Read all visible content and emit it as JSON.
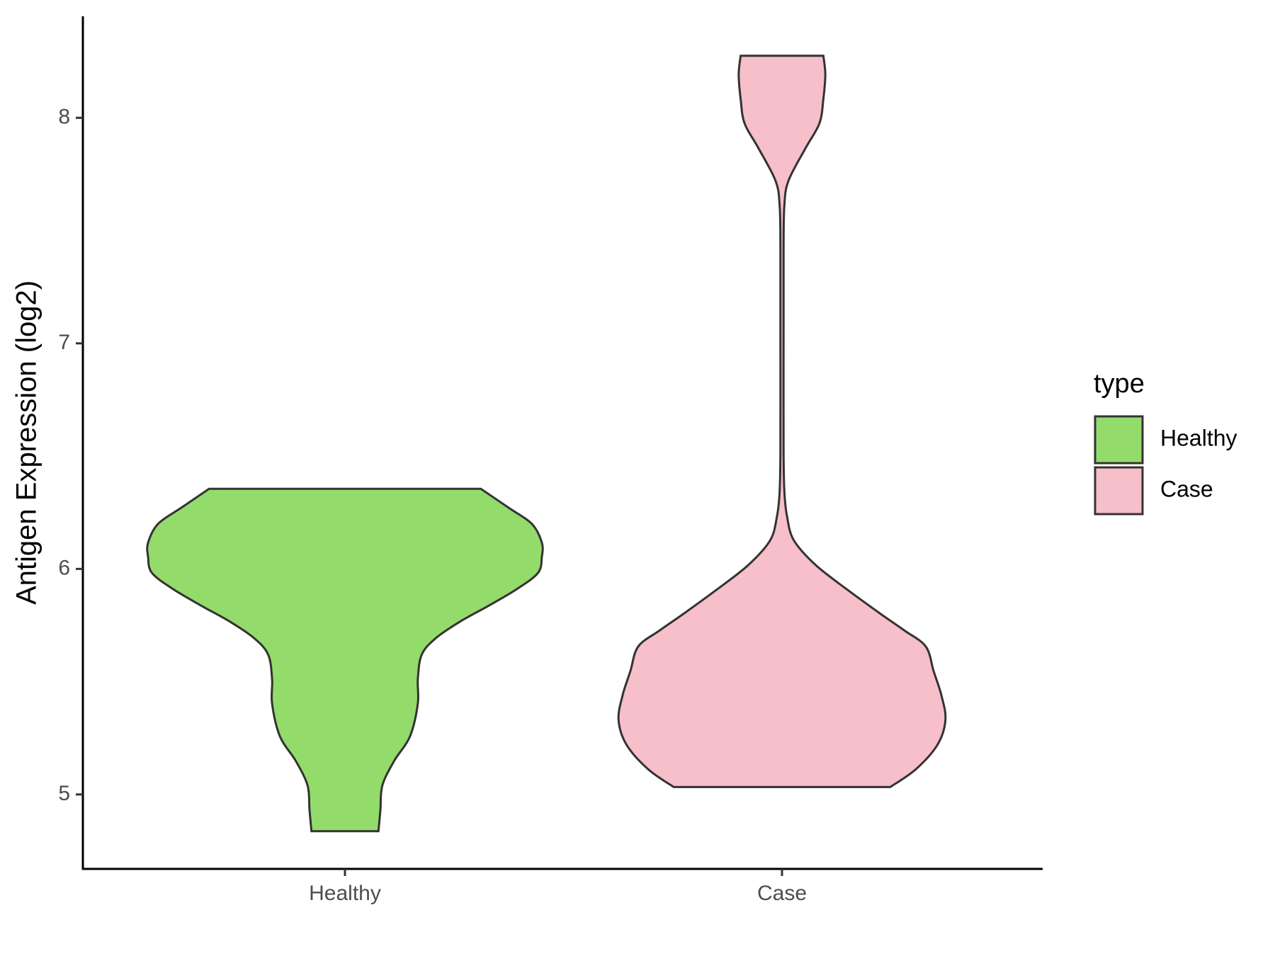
{
  "chart_data": {
    "type": "violin",
    "y_label": "Antigen Expression (log2)",
    "categories": [
      "Healthy",
      "Case"
    ],
    "legend_title": "type",
    "legend_position": "right",
    "ylim": [
      4.67,
      8.45
    ],
    "yticks": [
      5,
      6,
      7,
      8
    ],
    "series": [
      {
        "name": "Healthy",
        "color": "#93dc6b",
        "y": [
          4.837,
          4.931,
          5.04,
          5.149,
          5.257,
          5.402,
          5.511,
          5.62,
          5.692,
          5.764,
          5.837,
          5.909,
          5.982,
          6.054,
          6.116,
          6.199,
          6.272,
          6.355
        ],
        "density": [
          0.17,
          0.18,
          0.19,
          0.25,
          0.33,
          0.37,
          0.37,
          0.39,
          0.46,
          0.58,
          0.73,
          0.87,
          0.98,
          1.0,
          1.0,
          0.95,
          0.83,
          0.69
        ]
      },
      {
        "name": "Case",
        "color": "#f7bfca",
        "y": [
          5.033,
          5.112,
          5.221,
          5.33,
          5.438,
          5.547,
          5.656,
          5.728,
          5.801,
          5.909,
          6.018,
          6.127,
          6.236,
          6.344,
          6.525,
          7.069,
          7.431,
          7.612,
          7.721,
          7.866,
          7.975,
          8.083,
          8.192,
          8.275
        ],
        "density": [
          0.55,
          0.68,
          0.79,
          0.83,
          0.81,
          0.77,
          0.73,
          0.62,
          0.5,
          0.33,
          0.17,
          0.06,
          0.025,
          0.012,
          0.008,
          0.008,
          0.008,
          0.012,
          0.033,
          0.12,
          0.19,
          0.21,
          0.22,
          0.21
        ]
      }
    ]
  }
}
